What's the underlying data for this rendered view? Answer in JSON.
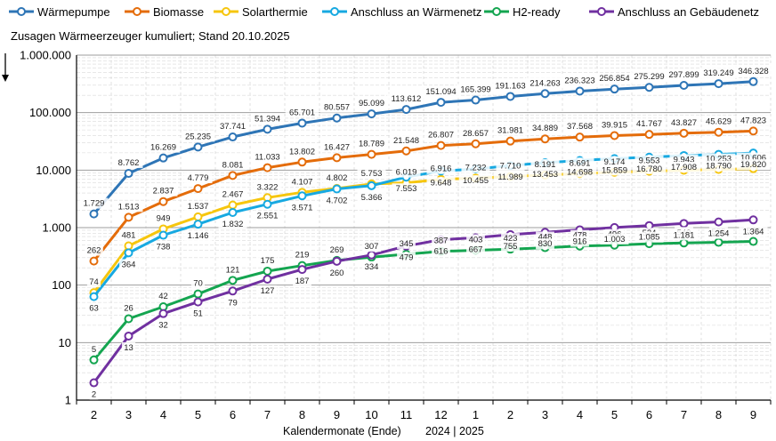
{
  "chart_data": {
    "type": "line",
    "title": "Zusagen Wärmeerzeuger kumuliert; Stand  20.10.2025",
    "xlabel": "Kalendermonate (Ende)",
    "year_label": "2024 | 2025",
    "yscale": "log",
    "ylim": [
      1,
      1000000
    ],
    "categories": [
      "2",
      "3",
      "4",
      "5",
      "6",
      "7",
      "8",
      "9",
      "10",
      "11",
      "12",
      "1",
      "2",
      "3",
      "4",
      "5",
      "6",
      "7",
      "8",
      "9"
    ],
    "yticks": [
      {
        "value": 1,
        "label": "1"
      },
      {
        "value": 10,
        "label": "10"
      },
      {
        "value": 100,
        "label": "100"
      },
      {
        "value": 1000,
        "label": "1.000"
      },
      {
        "value": 10000,
        "label": "10.000"
      },
      {
        "value": 100000,
        "label": "100.000"
      },
      {
        "value": 1000000,
        "label": "1.000.000"
      }
    ],
    "legend_position": "top",
    "series": [
      {
        "name": "Wärmepumpe",
        "color": "#2e75b6",
        "label_pos": "above",
        "values": [
          1729,
          8762,
          16269,
          25235,
          37741,
          51394,
          65701,
          80557,
          95099,
          113612,
          151094,
          165399,
          191163,
          214263,
          236323,
          256854,
          275299,
          297899,
          319249,
          346328
        ],
        "labels": [
          "1.729",
          "8.762",
          "16.269",
          "25.235",
          "37.741",
          "51.394",
          "65.701",
          "80.557",
          "95.099",
          "113.612",
          "151.094",
          "165.399",
          "191.163",
          "214.263",
          "236.323",
          "256.854",
          "275.299",
          "297.899",
          "319.249",
          "346.328"
        ]
      },
      {
        "name": "Biomasse",
        "color": "#e46c0a",
        "label_pos": "above",
        "values": [
          262,
          1513,
          2837,
          4779,
          8081,
          11033,
          13802,
          16427,
          18789,
          21548,
          26807,
          28657,
          31981,
          34889,
          37568,
          39915,
          41767,
          43827,
          45629,
          47823
        ],
        "labels": [
          "262",
          "1.513",
          "2.837",
          "4.779",
          "8.081",
          "11.033",
          "13.802",
          "16.427",
          "18.789",
          "21.548",
          "26.807",
          "28.657",
          "31.981",
          "34.889",
          "37.568",
          "39.915",
          "41.767",
          "43.827",
          "45.629",
          "47.823"
        ]
      },
      {
        "name": "Solarthermie",
        "color": "#f6c60e",
        "label_pos": "above",
        "values": [
          74,
          481,
          949,
          1537,
          2467,
          3322,
          4107,
          4802,
          5753,
          6019,
          6916,
          7232,
          7710,
          8191,
          8691,
          9174,
          9553,
          9943,
          10253,
          10606
        ],
        "labels": [
          "74",
          "481",
          "949",
          "1.537",
          "2.467",
          "3.322",
          "4.107",
          "4.802",
          "5.753",
          "6.019",
          "6.916",
          "7.232",
          "7.710",
          "8.191",
          "8.691",
          "9.174",
          "9.553",
          "9.943",
          "10.253",
          "10.606"
        ]
      },
      {
        "name": "Anschluss an Wärmenetz",
        "color": "#17a9e1",
        "label_pos": "below",
        "values": [
          63,
          364,
          738,
          1146,
          1832,
          2551,
          3571,
          4702,
          5366,
          7553,
          9648,
          10455,
          11989,
          13453,
          14698,
          15859,
          16780,
          17908,
          18790,
          19820
        ],
        "labels": [
          "63",
          "364",
          "738",
          "1.146",
          "1.832",
          "2.551",
          "3.571",
          "4.702",
          "5.366",
          "7.553",
          "9.648",
          "10.455",
          "11.989",
          "13.453",
          "14.698",
          "15.859",
          "16.780",
          "17.908",
          "18.790",
          "19.820"
        ]
      },
      {
        "name": "H2-ready",
        "color": "#14a550",
        "label_pos": "above",
        "values": [
          5,
          26,
          42,
          70,
          121,
          175,
          219,
          269,
          307,
          345,
          387,
          403,
          423,
          448,
          478,
          496,
          524,
          540,
          555,
          575
        ],
        "labels": [
          "5",
          "26",
          "42",
          "70",
          "121",
          "175",
          "219",
          "269",
          "307",
          "345",
          "387",
          "403",
          "423",
          "448",
          "478",
          "496",
          "524",
          "540",
          "555",
          "575"
        ]
      },
      {
        "name": "Anschluss an Gebäudenetz",
        "color": "#7030a0",
        "label_pos": "below",
        "values": [
          2,
          13,
          32,
          51,
          79,
          127,
          187,
          260,
          334,
          479,
          616,
          667,
          755,
          830,
          916,
          1003,
          1085,
          1181,
          1254,
          1364
        ],
        "labels": [
          "2",
          "13",
          "32",
          "51",
          "79",
          "127",
          "187",
          "260",
          "334",
          "479",
          "616",
          "667",
          "755",
          "830",
          "916",
          "1.003",
          "1.085",
          "1.181",
          "1.254",
          "1.364"
        ]
      }
    ]
  }
}
